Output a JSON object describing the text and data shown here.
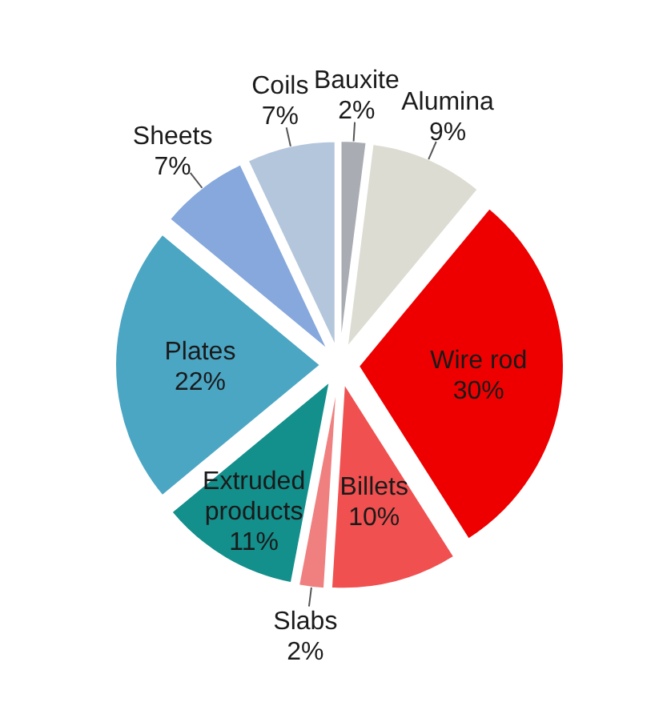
{
  "chart_data": {
    "type": "pie",
    "categories": [
      "Bauxite",
      "Alumina",
      "Wire rod",
      "Billets",
      "Slabs",
      "Extruded products",
      "Plates",
      "Sheets",
      "Coils"
    ],
    "values": [
      2,
      9,
      30,
      10,
      2,
      11,
      22,
      7,
      7
    ],
    "value_labels": [
      "2%",
      "9%",
      "30%",
      "10%",
      "2%",
      "11%",
      "22%",
      "7%",
      "7%"
    ],
    "colors": [
      "#a9acb3",
      "#dcdcd2",
      "#ee0000",
      "#f05050",
      "#f08080",
      "#138f8c",
      "#4ba6c4",
      "#86a8dc",
      "#b4c6dc"
    ]
  }
}
